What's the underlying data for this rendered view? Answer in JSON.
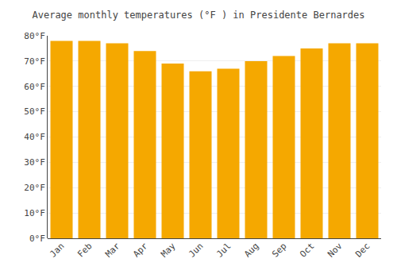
{
  "chart_data": {
    "type": "bar",
    "title": "Average monthly temperatures (°F ) in Presidente Bernardes",
    "categories": [
      "Jan",
      "Feb",
      "Mar",
      "Apr",
      "May",
      "Jun",
      "Jul",
      "Aug",
      "Sep",
      "Oct",
      "Nov",
      "Dec"
    ],
    "values": [
      78,
      78,
      77,
      74,
      69,
      66,
      67,
      70,
      72,
      75,
      77,
      77
    ],
    "color": "#F5A800",
    "ylim": [
      0,
      80
    ],
    "yticks": [
      {
        "value": 0,
        "label": "0°F"
      },
      {
        "value": 10,
        "label": "10°F"
      },
      {
        "value": 20,
        "label": "20°F"
      },
      {
        "value": 30,
        "label": "30°F"
      },
      {
        "value": 40,
        "label": "40°F"
      },
      {
        "value": 50,
        "label": "50°F"
      },
      {
        "value": 60,
        "label": "60°F"
      },
      {
        "value": 70,
        "label": "70°F"
      },
      {
        "value": 80,
        "label": "80°F"
      }
    ],
    "grid": true
  }
}
